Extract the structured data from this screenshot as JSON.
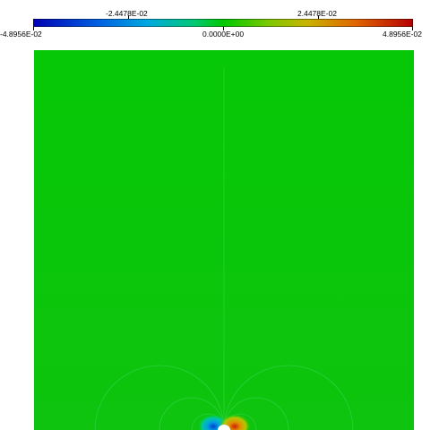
{
  "colorbar": {
    "min_label": "-4.8956E-02",
    "lower_mid_label": "-2.4478E-02",
    "center_label": "0.0000E+00",
    "upper_mid_label": "2.4478E-02",
    "max_label": "4.8956E-02",
    "range": [
      -0.048956,
      0.048956
    ],
    "colormap": [
      "#0000b4",
      "#0090e0",
      "#00c8a0",
      "#00c800",
      "#b4c800",
      "#e08000",
      "#b40000"
    ]
  },
  "field": {
    "background_color": "#0ac80a",
    "singularity": "white dot at bottom-center boundary"
  }
}
